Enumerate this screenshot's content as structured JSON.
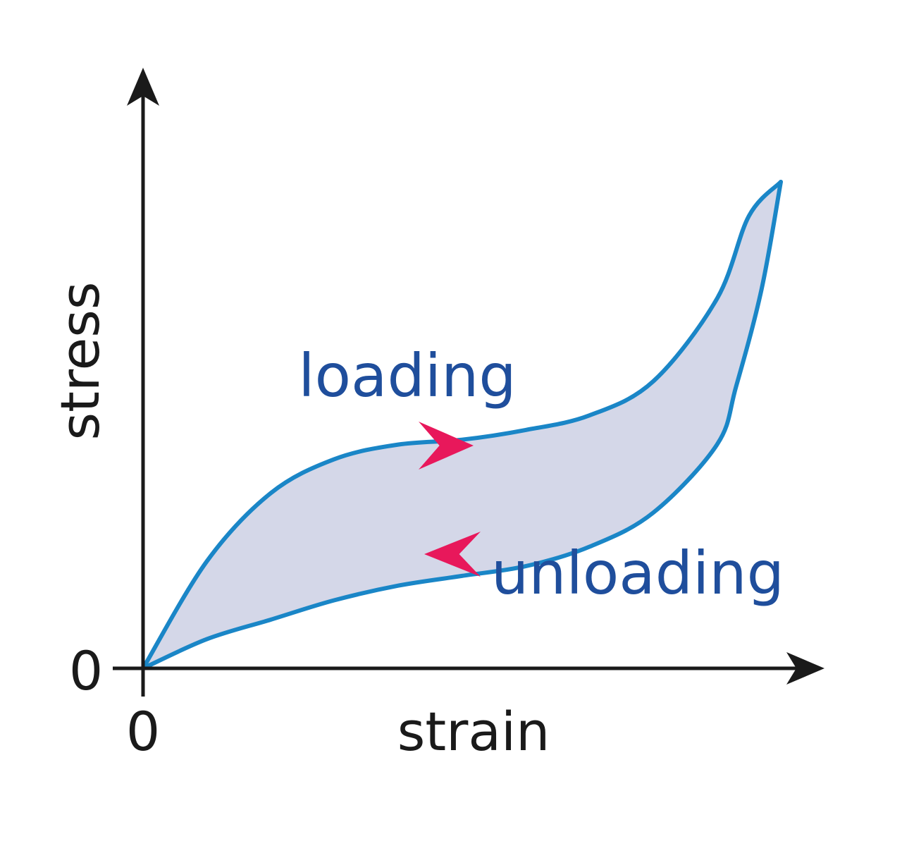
{
  "chart_data": {
    "type": "line",
    "xlabel": "strain",
    "ylabel": "stress",
    "x_tick_labels": [
      "0"
    ],
    "y_tick_labels": [
      "0"
    ],
    "x_range": [
      0,
      1
    ],
    "y_range": [
      0,
      1
    ],
    "grid": false,
    "series": [
      {
        "name": "loading",
        "direction": "forward",
        "x": [
          0,
          0.1,
          0.2,
          0.3,
          0.4,
          0.5,
          0.6,
          0.7,
          0.8,
          0.9,
          0.95,
          1.0
        ],
        "y": [
          0,
          0.22,
          0.36,
          0.43,
          0.46,
          0.47,
          0.49,
          0.52,
          0.59,
          0.76,
          0.93,
          1.0
        ]
      },
      {
        "name": "unloading",
        "direction": "reverse",
        "x": [
          1.0,
          0.97,
          0.93,
          0.9,
          0.8,
          0.7,
          0.6,
          0.5,
          0.4,
          0.3,
          0.2,
          0.1,
          0
        ],
        "y": [
          1.0,
          0.78,
          0.58,
          0.46,
          0.32,
          0.25,
          0.21,
          0.19,
          0.17,
          0.14,
          0.1,
          0.06,
          0
        ]
      }
    ],
    "colors": {
      "curve": "#1a86c7",
      "fill": "#d4d7e8",
      "arrow": "#e8185b",
      "label": "#1f4e9c",
      "axis": "#1a1a1a"
    }
  }
}
